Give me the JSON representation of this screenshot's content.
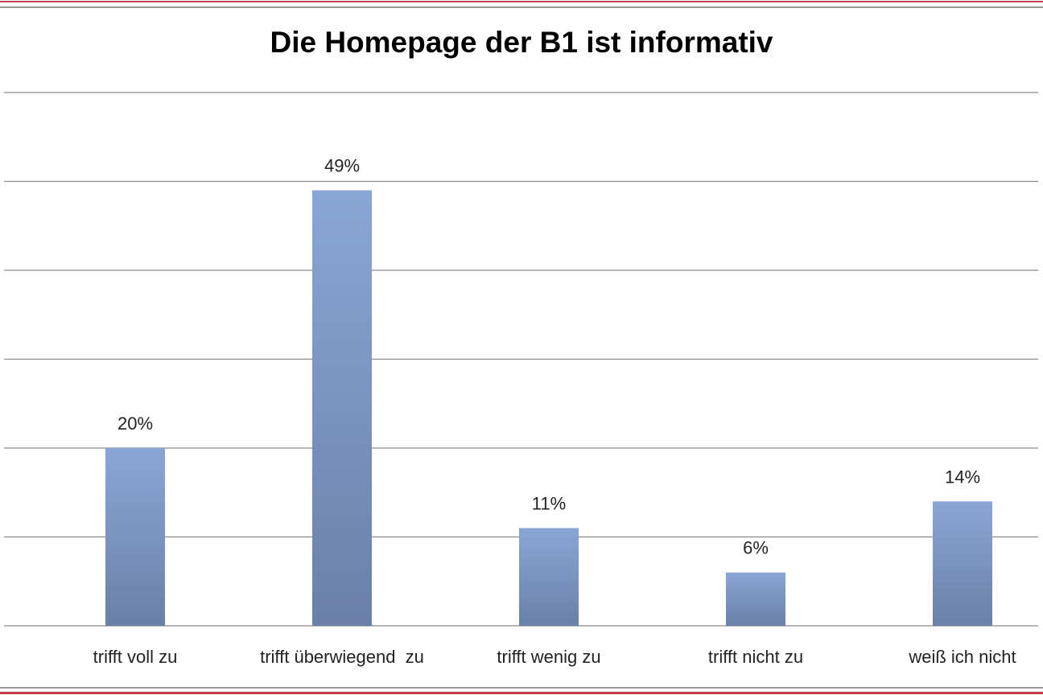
{
  "chart_data": {
    "type": "bar",
    "title": "Die Homepage der B1 ist informativ",
    "categories": [
      "trifft voll zu",
      "trifft überwiegend  zu",
      "trifft wenig zu",
      "trifft nicht zu",
      "weiß ich nicht"
    ],
    "values": [
      20,
      49,
      11,
      6,
      14
    ],
    "data_labels": [
      "20%",
      "49%",
      "11%",
      "6%",
      "14%"
    ],
    "xlabel": "",
    "ylabel": "",
    "ylim": [
      0,
      60
    ],
    "gridlines": [
      0,
      10,
      20,
      30,
      40,
      50,
      60
    ],
    "grid": true,
    "legend": "none",
    "colors": {
      "bar_top": "#8aa6d6",
      "bar_bottom": "#6a80a8",
      "grid": "#8c8c8c",
      "border": "#c0404a"
    }
  }
}
